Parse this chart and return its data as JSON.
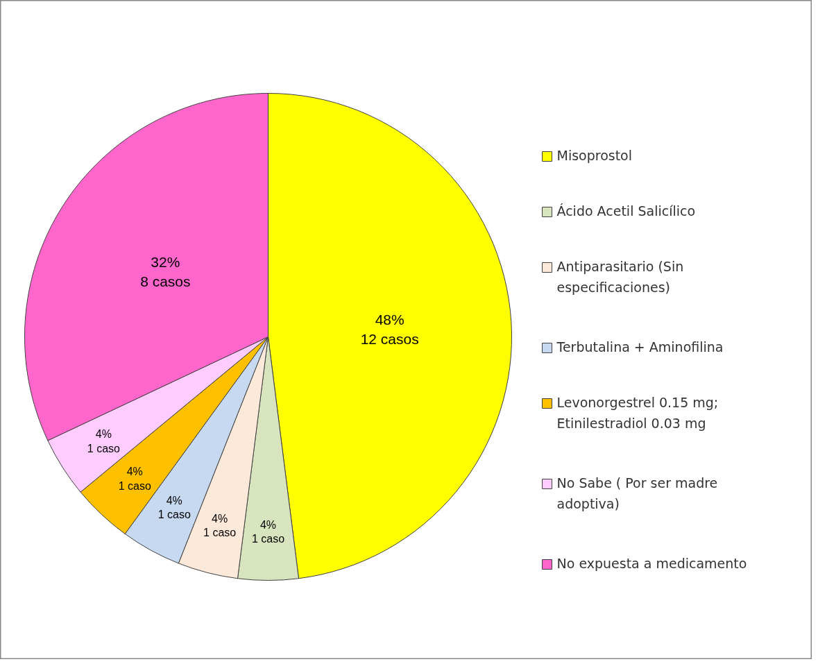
{
  "chart_data": {
    "type": "pie",
    "categories": [
      "Misoprostol",
      "Ácido Acetil Salicílico",
      "Antiparasitario (Sin especificaciones)",
      "Terbutalina + Aminofilina",
      "Levonorgestrel 0.15 mg; Etinilestradiol 0.03 mg",
      "No Sabe ( Por ser madre adoptiva)",
      "No expuesta a medicamento"
    ],
    "values": [
      48,
      4,
      4,
      4,
      4,
      4,
      32
    ],
    "colors": [
      "#ffff00",
      "#d7e4bd",
      "#fde9d9",
      "#c6d9f1",
      "#ffc000",
      "#ffccff",
      "#ff66cc"
    ],
    "value_labels": [
      "48%\n12 casos",
      "4%\n1 caso",
      "4%\n1 caso",
      "4%\n1 caso",
      "4%\n1 caso",
      "4%\n1 caso",
      "32%\n8 casos"
    ],
    "legend": "right"
  }
}
